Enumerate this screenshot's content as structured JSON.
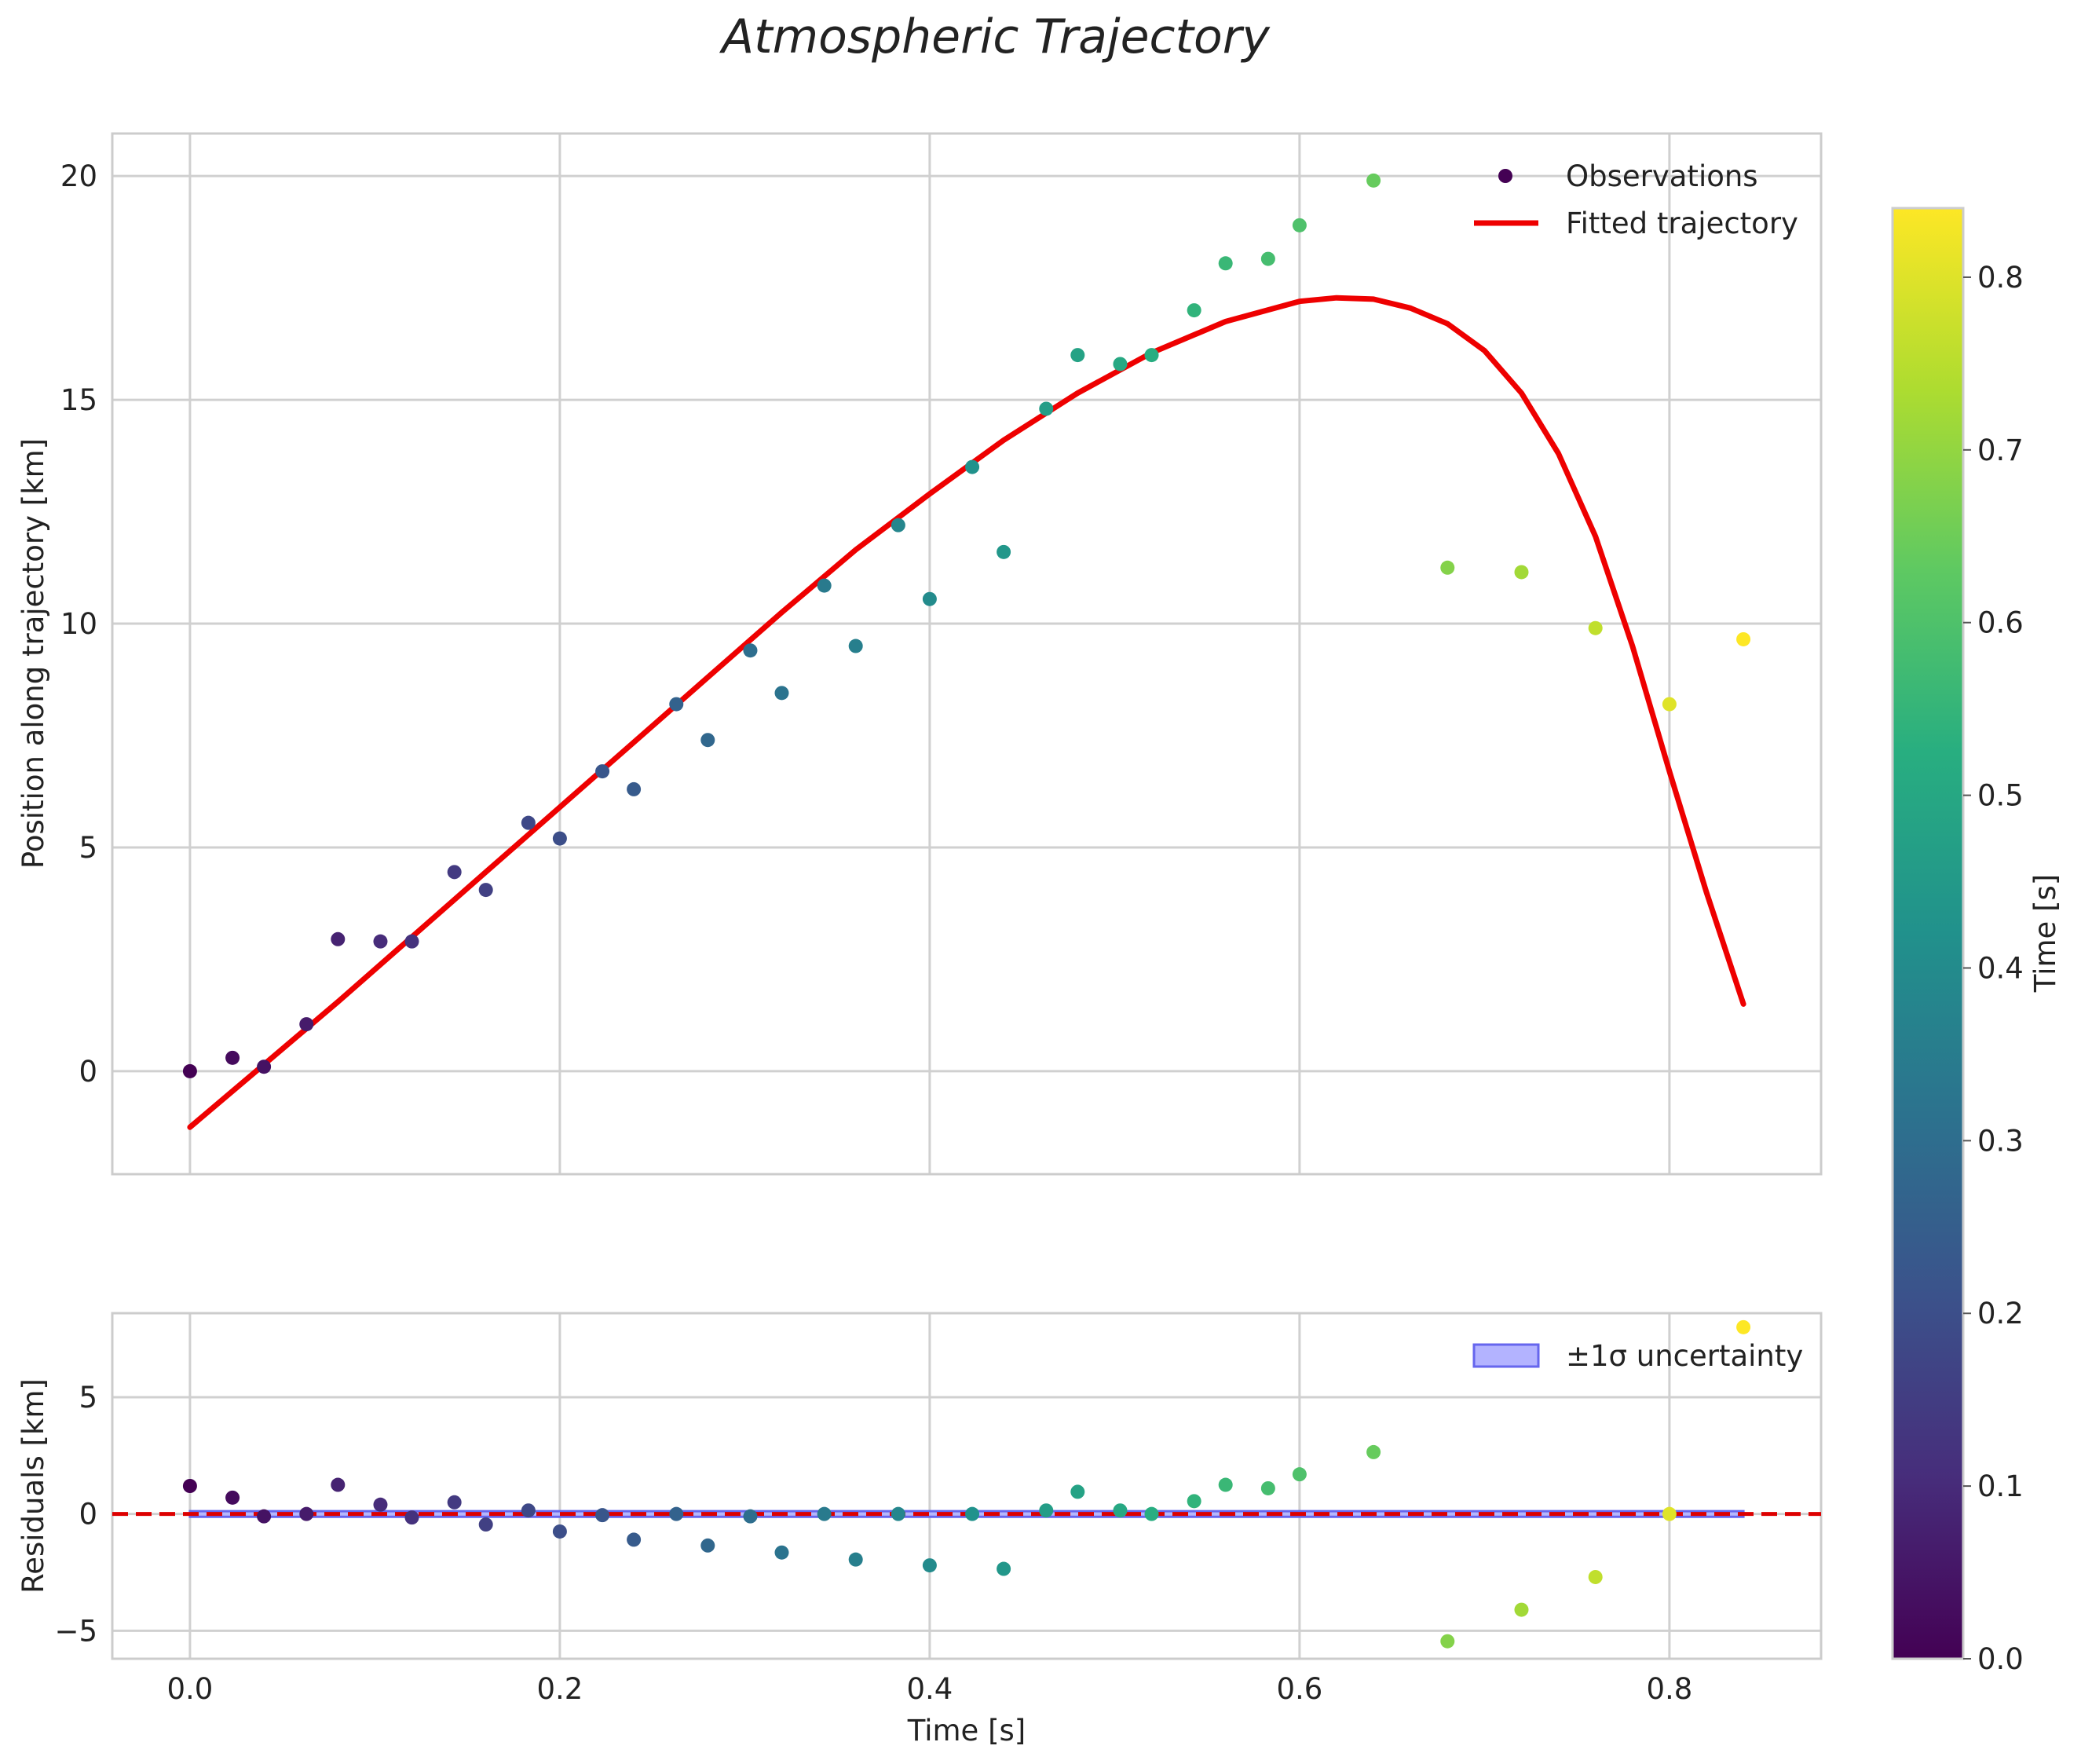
{
  "chart_data": {
    "type": "scatter",
    "title": "Atmospheric Trajectory",
    "colors": {
      "fit_line": "#ee0000",
      "zero_line": "#dd0000",
      "uncertainty_fill": "#b3b3ff",
      "uncertainty_edge": "#6666ee",
      "grid": "#d0d0d0",
      "frame": "#cccccc"
    },
    "top_panel": {
      "xlabel": "",
      "ylabel": "Position along trajectory [km]",
      "xlim": [
        -0.042,
        0.882
      ],
      "ylim": [
        -2.3,
        20.95
      ],
      "xticks": [
        0.0,
        0.2,
        0.4,
        0.6,
        0.8
      ],
      "yticks": [
        0,
        5,
        10,
        15,
        20
      ],
      "ytick_labels": [
        "0",
        "5",
        "10",
        "15",
        "20"
      ],
      "legend": {
        "placement": "top-right",
        "observations_label": "Observations",
        "fit_label": "Fitted trajectory"
      },
      "observations": {
        "name": "Observations",
        "x": [
          0.0,
          0.023,
          0.04,
          0.063,
          0.08,
          0.103,
          0.12,
          0.143,
          0.16,
          0.183,
          0.2,
          0.223,
          0.24,
          0.263,
          0.28,
          0.303,
          0.32,
          0.343,
          0.36,
          0.383,
          0.4,
          0.423,
          0.44,
          0.463,
          0.48,
          0.503,
          0.52,
          0.543,
          0.56,
          0.583,
          0.6,
          0.64,
          0.68,
          0.72,
          0.76,
          0.8,
          0.84
        ],
        "y": [
          0.0,
          0.3,
          0.1,
          1.05,
          2.95,
          2.9,
          2.9,
          4.45,
          4.05,
          5.55,
          5.2,
          6.7,
          6.3,
          8.2,
          7.4,
          9.4,
          8.45,
          10.85,
          9.5,
          12.2,
          10.55,
          13.5,
          11.6,
          14.8,
          16.0,
          15.8,
          16.0,
          17.0,
          18.05,
          18.15,
          18.9,
          19.9,
          11.25,
          11.15,
          9.9,
          8.2,
          9.65
        ]
      },
      "fit": {
        "name": "Fitted trajectory",
        "x": [
          0.0,
          0.04,
          0.08,
          0.12,
          0.16,
          0.2,
          0.24,
          0.28,
          0.32,
          0.36,
          0.4,
          0.44,
          0.48,
          0.52,
          0.56,
          0.6,
          0.62,
          0.64,
          0.66,
          0.68,
          0.7,
          0.72,
          0.74,
          0.76,
          0.78,
          0.8,
          0.82,
          0.84
        ],
        "y": [
          -1.25,
          0.15,
          1.55,
          3.0,
          4.45,
          5.9,
          7.35,
          8.8,
          10.25,
          11.65,
          12.9,
          14.1,
          15.15,
          16.05,
          16.75,
          17.2,
          17.28,
          17.25,
          17.05,
          16.7,
          16.1,
          15.15,
          13.8,
          11.95,
          9.5,
          6.7,
          4.0,
          1.5
        ]
      }
    },
    "bottom_panel": {
      "xlabel": "Time [s]",
      "ylabel": "Residuals [km]",
      "xlim": [
        -0.042,
        0.882
      ],
      "ylim": [
        -6.2,
        8.6
      ],
      "xticks": [
        0.0,
        0.2,
        0.4,
        0.6,
        0.8
      ],
      "xtick_labels": [
        "0.0",
        "0.2",
        "0.4",
        "0.6",
        "0.8"
      ],
      "yticks": [
        -5,
        0,
        5
      ],
      "ytick_labels": [
        "−5",
        "0",
        "5"
      ],
      "legend": {
        "placement": "top-right",
        "uncertainty_label": "±1σ uncertainty"
      },
      "uncertainty_band": {
        "x_range": [
          0.0,
          0.84
        ],
        "y_range": [
          -0.12,
          0.12
        ]
      },
      "residuals": {
        "x": [
          0.0,
          0.023,
          0.04,
          0.063,
          0.08,
          0.103,
          0.12,
          0.143,
          0.16,
          0.183,
          0.2,
          0.223,
          0.24,
          0.263,
          0.28,
          0.303,
          0.32,
          0.343,
          0.36,
          0.383,
          0.4,
          0.423,
          0.44,
          0.463,
          0.48,
          0.503,
          0.52,
          0.543,
          0.56,
          0.583,
          0.6,
          0.64,
          0.68,
          0.72,
          0.76,
          0.8,
          0.84
        ],
        "y": [
          1.2,
          0.7,
          -0.1,
          0.0,
          1.25,
          0.4,
          -0.15,
          0.5,
          -0.45,
          0.15,
          -0.75,
          -0.05,
          -1.1,
          0.0,
          -1.35,
          -0.1,
          -1.65,
          0.0,
          -1.95,
          0.0,
          -2.2,
          0.0,
          -2.35,
          0.15,
          0.95,
          0.15,
          0.0,
          0.55,
          1.25,
          1.1,
          1.7,
          2.65,
          -5.45,
          -4.1,
          -2.7,
          0.0,
          8.0
        ]
      }
    },
    "colorbar": {
      "label": "Time [s]",
      "colormap": "viridis",
      "vmin": 0.0,
      "vmax": 0.84,
      "ticks": [
        0.0,
        0.1,
        0.2,
        0.3,
        0.4,
        0.5,
        0.6,
        0.7,
        0.8
      ],
      "tick_labels": [
        "0.0",
        "0.1",
        "0.2",
        "0.3",
        "0.4",
        "0.5",
        "0.6",
        "0.7",
        "0.8"
      ]
    }
  }
}
